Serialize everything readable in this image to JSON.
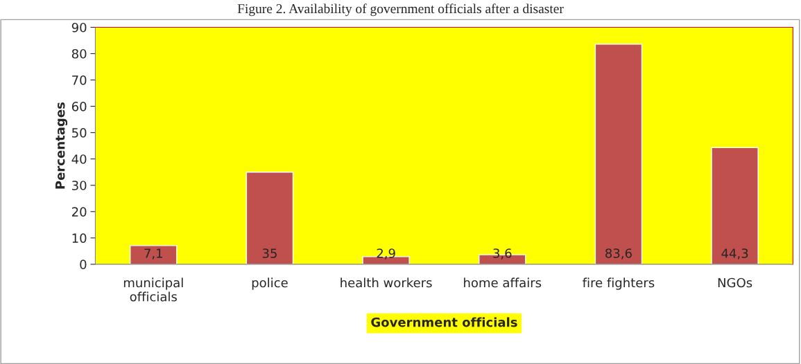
{
  "chart_data": {
    "type": "bar",
    "title": "Figure 2. Availability of government officials after a disaster",
    "xlabel": "Government officials",
    "ylabel": "Percentages",
    "categories": [
      "municipal\nofficials",
      "police",
      "health workers",
      "home affairs",
      "fire fighters",
      "NGOs"
    ],
    "values": [
      7.1,
      35,
      2.9,
      3.6,
      83.6,
      44.3
    ],
    "value_labels": [
      "7,1",
      "35",
      "2,9",
      "3,6",
      "83,6",
      "44,3"
    ],
    "color": "#c0504d",
    "ylim": [
      0,
      90
    ],
    "yticks": [
      0,
      10,
      20,
      30,
      40,
      50,
      60,
      70,
      80,
      90
    ],
    "grid": false,
    "legend": false
  }
}
